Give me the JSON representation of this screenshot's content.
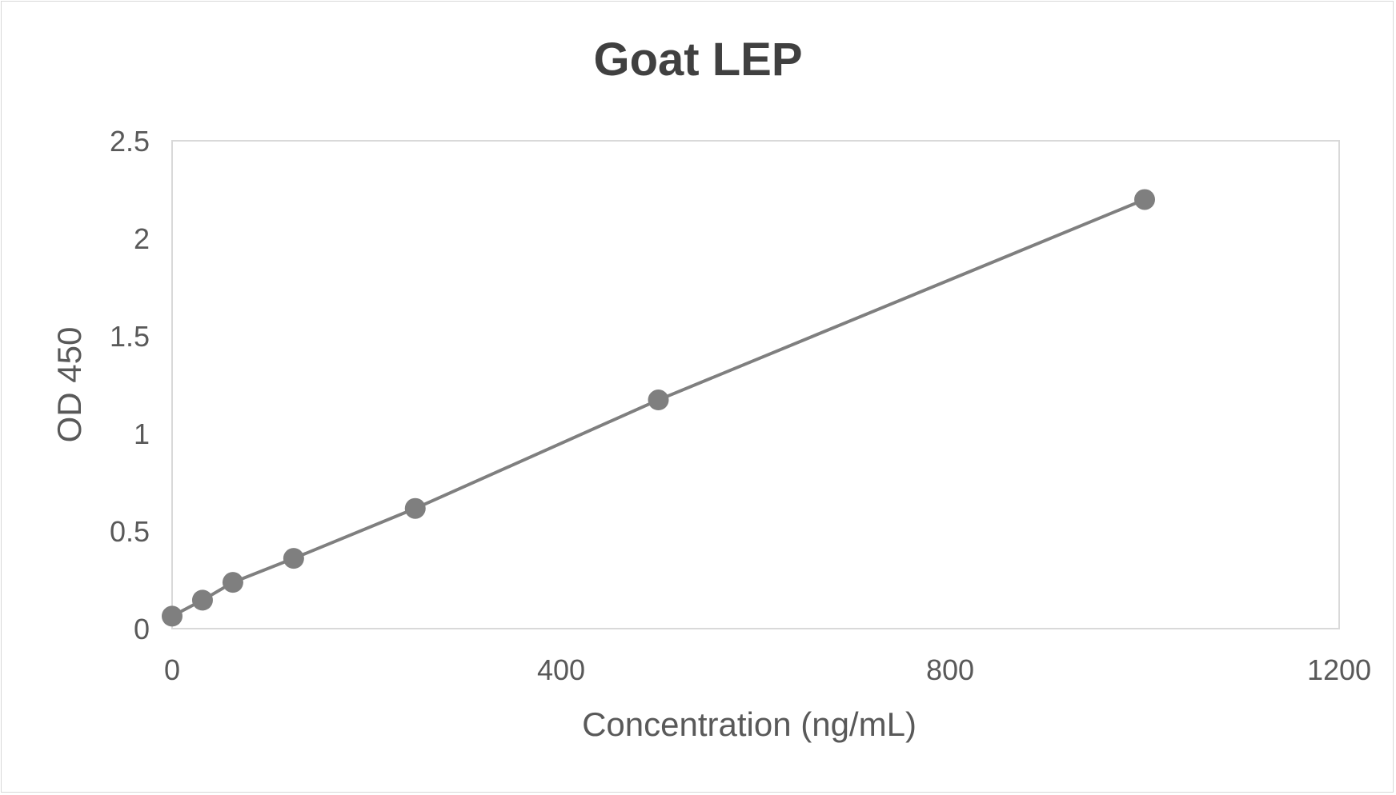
{
  "chart_data": {
    "type": "scatter",
    "title": "Goat LEP",
    "xlabel": "Concentration (ng/mL)",
    "ylabel": "OD 450",
    "xlim": [
      0,
      1200
    ],
    "ylim": [
      0,
      2.5
    ],
    "xticks": [
      "0",
      "400",
      "800",
      "1200"
    ],
    "yticks": [
      "0",
      "0.5",
      "1",
      "1.5",
      "2",
      "2.5"
    ],
    "grid": false,
    "legend": "none",
    "line": "straight lines connecting points",
    "colors": {
      "series": "#7f7f7f",
      "axis": "#d9d9d9"
    },
    "x": [
      0,
      31.25,
      62.5,
      125,
      250,
      500,
      1000
    ],
    "y": [
      0.064,
      0.146,
      0.237,
      0.36,
      0.616,
      1.172,
      2.199
    ]
  }
}
